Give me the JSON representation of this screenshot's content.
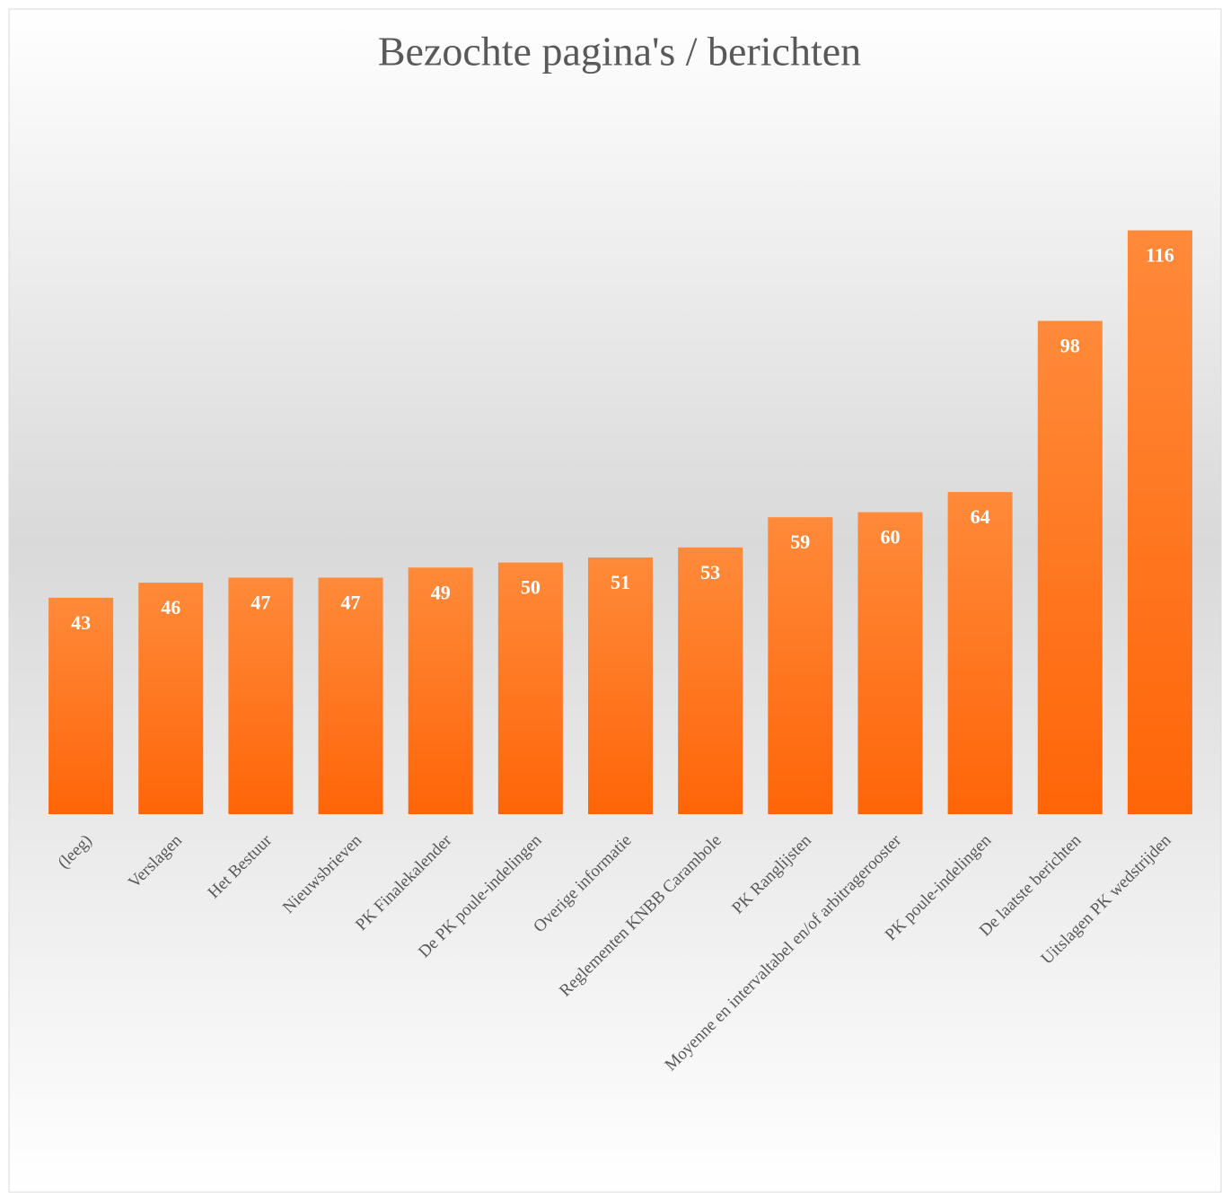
{
  "chart_data": {
    "type": "bar",
    "title": "Bezochte pagina's / berichten",
    "categories": [
      "(leeg)",
      "Verslagen",
      "Het Bestuur",
      "Nieuwsbrieven",
      "PK Finalekalender",
      "De PK poule-indelingen",
      "Overige informatie",
      "Reglementen KNBB Carambole",
      "PK Ranglijsten",
      "Moyenne en intervaltabel en/of arbitragerooster",
      "PK poule-indelingen",
      "De laatste berichten",
      "Uitslagen PK wedstrijden"
    ],
    "values": [
      43,
      46,
      47,
      47,
      49,
      50,
      51,
      53,
      59,
      60,
      64,
      98,
      116
    ],
    "color": "#ff7626",
    "ylim": [
      0,
      140
    ]
  }
}
